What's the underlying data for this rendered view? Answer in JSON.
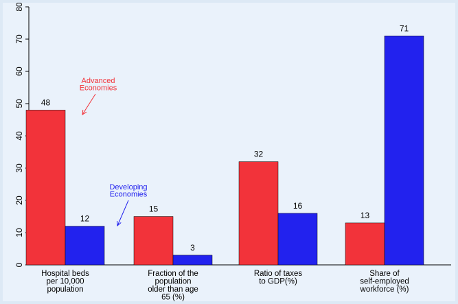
{
  "chart_data": {
    "type": "bar",
    "categories": [
      [
        "Hospital beds",
        "per 10,000",
        "population"
      ],
      [
        "Fraction of the",
        "population",
        "older than age",
        "65 (%)"
      ],
      [
        "Ratio of taxes",
        "to GDP(%)"
      ],
      [
        "Share of",
        "self-employed",
        "workforce (%)"
      ]
    ],
    "series": [
      {
        "values": [
          48,
          15,
          32,
          13
        ],
        "color": "#f2333a"
      },
      {
        "values": [
          12,
          3,
          16,
          71
        ],
        "color": "#2222ee"
      }
    ],
    "data_labels": [
      [
        "48",
        "15",
        "32",
        "13"
      ],
      [
        "12",
        "3",
        "16",
        "71"
      ]
    ],
    "y_ticks": [
      "0",
      "10",
      "20",
      "30",
      "40",
      "50",
      "60",
      "70",
      "80"
    ],
    "ylim": [
      0,
      80
    ],
    "grid": false,
    "annotations": [
      {
        "lines": [
          "Advanced",
          "Economies"
        ],
        "color": "#f2333a",
        "points_to": {
          "series": 0,
          "category": 0
        }
      },
      {
        "lines": [
          "Developing",
          "Economies"
        ],
        "color": "#2222ee",
        "points_to": {
          "series": 1,
          "category": 0
        }
      }
    ],
    "axis_color": "#000000",
    "background": "#eaf2fb"
  }
}
